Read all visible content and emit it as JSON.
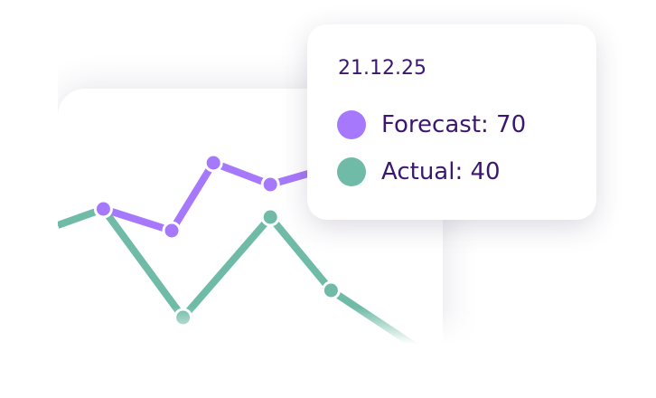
{
  "chart_data": {
    "type": "line",
    "title": "",
    "xlabel": "",
    "ylabel": "",
    "grid": false,
    "series": [
      {
        "name": "Forecast",
        "color": "#a678fb",
        "x": [
          1.2,
          3.0,
          4.1,
          5.6,
          6.6
        ],
        "y": [
          63,
          55,
          80,
          72,
          76
        ]
      },
      {
        "name": "Actual",
        "color": "#6fbba7",
        "x": [
          0,
          1.2,
          3.3,
          5.6,
          7.2,
          9.9
        ],
        "y": [
          57,
          63,
          23,
          60,
          33,
          8
        ]
      }
    ]
  },
  "tooltip": {
    "date": "21.12.25",
    "items": [
      {
        "label": "Forecast: 70",
        "color": "#a678fb"
      },
      {
        "label": "Actual: 40",
        "color": "#6fbba7"
      }
    ]
  }
}
